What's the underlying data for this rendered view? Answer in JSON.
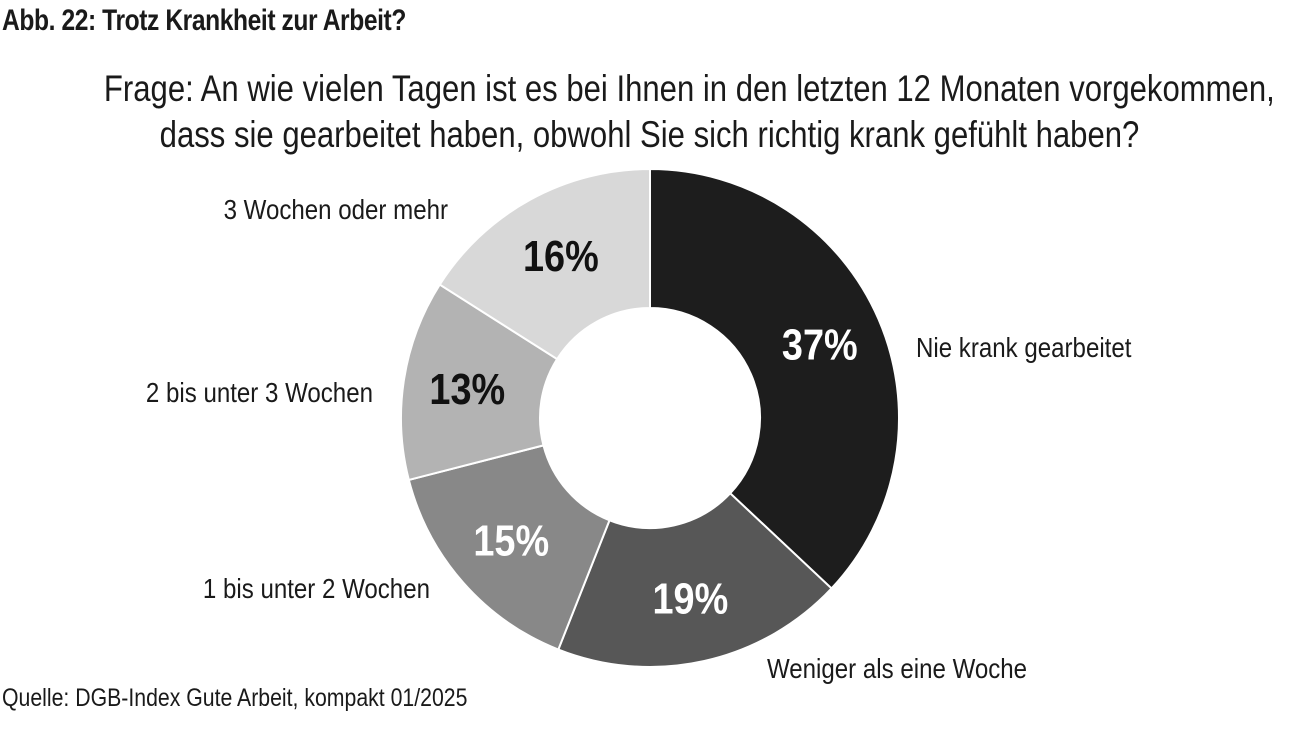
{
  "figure": {
    "title": "Abb. 22: Trotz Krankheit zur Arbeit?",
    "question_line1": "Frage: An wie vielen Tagen ist es bei Ihnen in den letzten 12 Monaten vorgekommen,",
    "question_line2": "dass sie gearbeitet haben, obwohl Sie sich richtig krank gefühlt haben?",
    "source": "Quelle: DGB-Index Gute Arbeit, kompakt 01/2025"
  },
  "chart_data": {
    "type": "pie",
    "variant": "donut",
    "title": "Abb. 22: Trotz Krankheit zur Arbeit?",
    "start": "12 o'clock",
    "direction": "clockwise",
    "unit": "%",
    "categories": [
      "Nie krank gearbeitet",
      "Weniger als eine Woche",
      "1 bis unter 2 Wochen",
      "2 bis unter 3 Wochen",
      "3 Wochen oder mehr"
    ],
    "values": [
      37,
      19,
      15,
      13,
      16
    ],
    "value_labels": [
      "37%",
      "19%",
      "15%",
      "13%",
      "16%"
    ],
    "colors": [
      "#1d1d1d",
      "#575757",
      "#888888",
      "#b3b3b3",
      "#d8d8d8"
    ],
    "value_label_colors": [
      "#ffffff",
      "#ffffff",
      "#ffffff",
      "#111111",
      "#111111"
    ],
    "legend": "none"
  }
}
